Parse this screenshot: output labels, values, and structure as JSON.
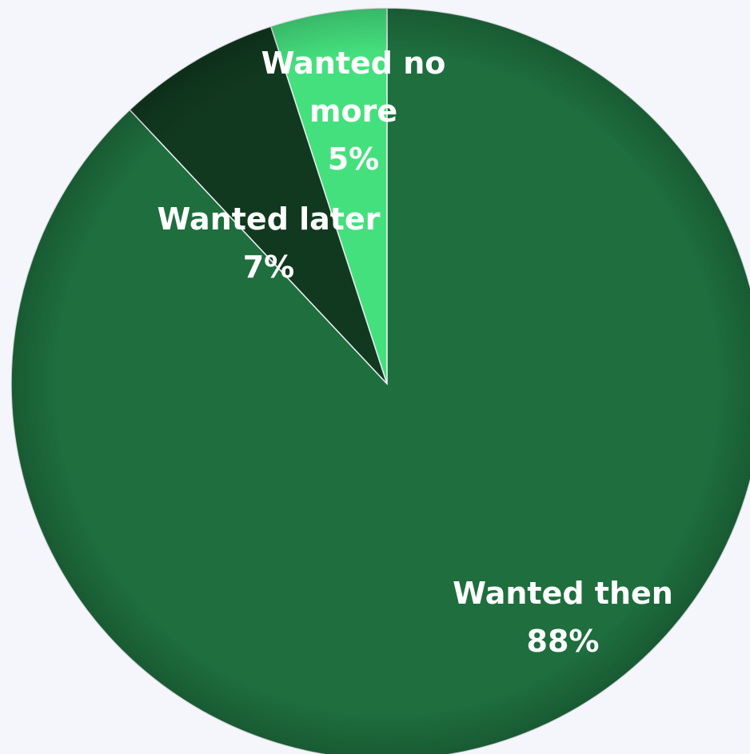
{
  "chart_data": {
    "type": "pie",
    "title": "",
    "start_angle_deg": 0,
    "direction": "clockwise",
    "slices": [
      {
        "label_lines": [
          "Wanted then"
        ],
        "value_label": "88%",
        "value": 88,
        "color": "#1e6e3e"
      },
      {
        "label_lines": [
          "Wanted later"
        ],
        "value_label": "7%",
        "value": 7,
        "color": "#11391f"
      },
      {
        "label_lines": [
          "Wanted no",
          "more"
        ],
        "value_label": "5%",
        "value": 5,
        "color": "#45e07e"
      }
    ],
    "legend": "none"
  }
}
